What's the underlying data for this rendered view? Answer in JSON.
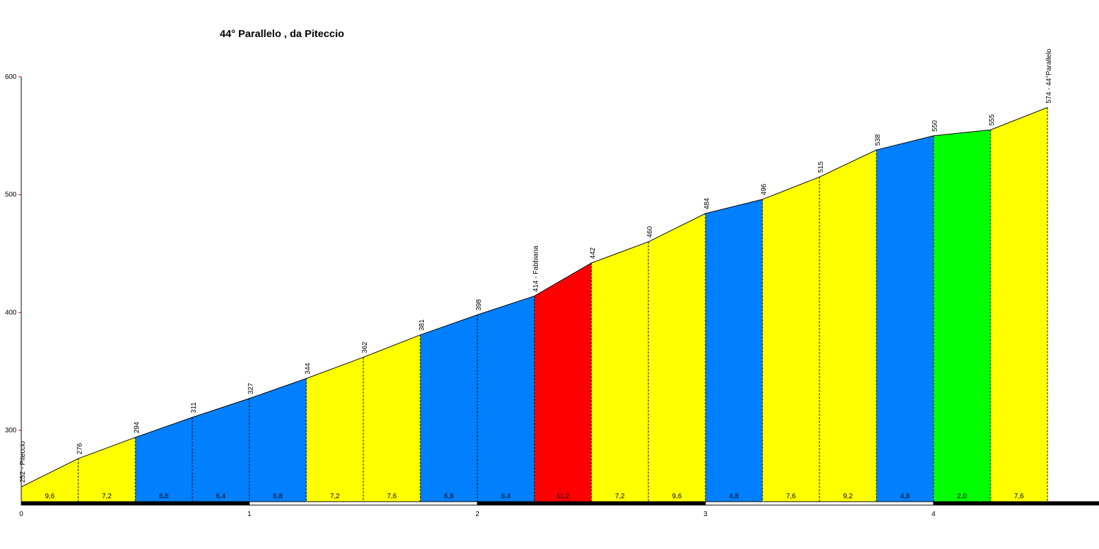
{
  "chart_data": {
    "type": "area",
    "title": "44° Parallelo , da Piteccio",
    "xlabel": "",
    "ylabel": "",
    "x_unit": "km",
    "xlim": [
      0,
      4.75
    ],
    "ylim": [
      240,
      600
    ],
    "x_ticks": [
      "0",
      "1",
      "2",
      "3",
      "4"
    ],
    "y_ticks": [
      "300",
      "400",
      "500",
      "600"
    ],
    "grid": false,
    "points": [
      {
        "x": 0.0,
        "alt": 252,
        "label": "252 - Piteccio"
      },
      {
        "x": 0.25,
        "alt": 276,
        "label": "276"
      },
      {
        "x": 0.5,
        "alt": 294,
        "label": "294"
      },
      {
        "x": 0.75,
        "alt": 311,
        "label": "311"
      },
      {
        "x": 1.0,
        "alt": 327,
        "label": "327"
      },
      {
        "x": 1.25,
        "alt": 344,
        "label": "344"
      },
      {
        "x": 1.5,
        "alt": 362,
        "label": "362"
      },
      {
        "x": 1.75,
        "alt": 381,
        "label": "381"
      },
      {
        "x": 2.0,
        "alt": 398,
        "label": "398"
      },
      {
        "x": 2.25,
        "alt": 414,
        "label": "414 - Fabbiana"
      },
      {
        "x": 2.5,
        "alt": 442,
        "label": "442"
      },
      {
        "x": 2.75,
        "alt": 460,
        "label": "460"
      },
      {
        "x": 3.0,
        "alt": 484,
        "label": "484"
      },
      {
        "x": 3.25,
        "alt": 496,
        "label": "496"
      },
      {
        "x": 3.5,
        "alt": 515,
        "label": "515"
      },
      {
        "x": 3.75,
        "alt": 538,
        "label": "538"
      },
      {
        "x": 4.0,
        "alt": 550,
        "label": "550"
      },
      {
        "x": 4.25,
        "alt": 555,
        "label": "555"
      },
      {
        "x": 4.5,
        "alt": 574,
        "label": "574 - 44°Parallelo"
      }
    ],
    "segments": [
      {
        "grade": "9,6",
        "color": "#ffff00"
      },
      {
        "grade": "7,2",
        "color": "#ffff00"
      },
      {
        "grade": "6,8",
        "color": "#0080ff"
      },
      {
        "grade": "6,4",
        "color": "#0080ff"
      },
      {
        "grade": "6,8",
        "color": "#0080ff"
      },
      {
        "grade": "7,2",
        "color": "#ffff00"
      },
      {
        "grade": "7,6",
        "color": "#ffff00"
      },
      {
        "grade": "6,8",
        "color": "#0080ff"
      },
      {
        "grade": "6,4",
        "color": "#0080ff"
      },
      {
        "grade": "11,2",
        "color": "#ff0000"
      },
      {
        "grade": "7,2",
        "color": "#ffff00"
      },
      {
        "grade": "9,6",
        "color": "#ffff00"
      },
      {
        "grade": "4,8",
        "color": "#0080ff"
      },
      {
        "grade": "7,6",
        "color": "#ffff00"
      },
      {
        "grade": "9,2",
        "color": "#ffff00"
      },
      {
        "grade": "4,8",
        "color": "#0080ff"
      },
      {
        "grade": "2,0",
        "color": "#00ff00"
      },
      {
        "grade": "7,6",
        "color": "#ffff00"
      }
    ]
  }
}
